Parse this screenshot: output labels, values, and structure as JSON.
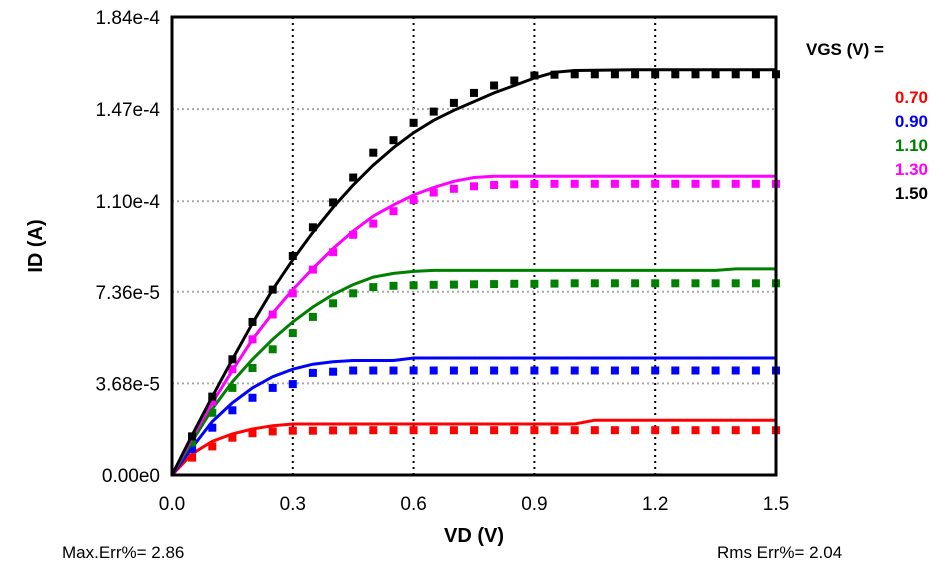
{
  "chart_data": {
    "type": "line",
    "xlabel": "VD (V)",
    "ylabel": "ID (A)",
    "xlim": [
      0,
      1.5
    ],
    "ylim": [
      0,
      0.000184
    ],
    "x_ticks": [
      "0.0",
      "0.3",
      "0.6",
      "0.9",
      "1.2",
      "1.5"
    ],
    "y_ticks": [
      "0.00e0",
      "3.68e-5",
      "7.36e-5",
      "1.10e-4",
      "1.47e-4",
      "1.84e-4"
    ],
    "legend_title": "VGS (V) =",
    "legend_position": "right",
    "vertical_grid": "dotted black",
    "horizontal_grid": "dotted gray",
    "series": [
      {
        "name": "0.70",
        "color": "#ff0000",
        "model": {
          "x": [
            0,
            0.05,
            0.1,
            0.15,
            0.2,
            0.25,
            0.3,
            0.35,
            0.45,
            0.6,
            1.0,
            1.05,
            1.5
          ],
          "y": [
            0,
            8.5e-06,
            1.35e-05,
            1.65e-05,
            1.85e-05,
            1.98e-05,
            2.05e-05,
            2.05e-05,
            2.05e-05,
            2.05e-05,
            2.05e-05,
            2.2e-05,
            2.2e-05
          ]
        },
        "measured": {
          "x": [
            0.05,
            0.1,
            0.15,
            0.2,
            0.25,
            0.3,
            0.35,
            0.4,
            0.45,
            0.5,
            0.55,
            0.6,
            0.65,
            0.7,
            0.75,
            0.8,
            0.85,
            0.9,
            0.95,
            1.0,
            1.05,
            1.1,
            1.15,
            1.2,
            1.25,
            1.3,
            1.35,
            1.4,
            1.45,
            1.5
          ],
          "y": [
            7e-06,
            1.15e-05,
            1.5e-05,
            1.68e-05,
            1.75e-05,
            1.78e-05,
            1.78e-05,
            1.79e-05,
            1.79e-05,
            1.8e-05,
            1.8e-05,
            1.8e-05,
            1.8e-05,
            1.8e-05,
            1.8e-05,
            1.8e-05,
            1.8e-05,
            1.8e-05,
            1.8e-05,
            1.8e-05,
            1.8e-05,
            1.8e-05,
            1.8e-05,
            1.8e-05,
            1.8e-05,
            1.8e-05,
            1.8e-05,
            1.8e-05,
            1.8e-05,
            1.8e-05
          ]
        }
      },
      {
        "name": "0.90",
        "color": "#0000ff",
        "model": {
          "x": [
            0,
            0.05,
            0.1,
            0.15,
            0.2,
            0.25,
            0.3,
            0.35,
            0.4,
            0.45,
            0.55,
            0.6,
            0.7,
            1.5
          ],
          "y": [
            0,
            1.1e-05,
            2.15e-05,
            2.9e-05,
            3.5e-05,
            3.95e-05,
            4.25e-05,
            4.45e-05,
            4.55e-05,
            4.6e-05,
            4.6e-05,
            4.7e-05,
            4.7e-05,
            4.7e-05
          ]
        },
        "measured": {
          "x": [
            0.05,
            0.1,
            0.15,
            0.2,
            0.25,
            0.3,
            0.35,
            0.4,
            0.45,
            0.5,
            0.55,
            0.6,
            0.65,
            0.7,
            0.75,
            0.8,
            0.85,
            0.9,
            0.95,
            1.0,
            1.05,
            1.1,
            1.15,
            1.2,
            1.25,
            1.3,
            1.35,
            1.4,
            1.45,
            1.5
          ],
          "y": [
            1.05e-05,
            1.9e-05,
            2.6e-05,
            3.1e-05,
            3.5e-05,
            3.65e-05,
            4.1e-05,
            4.15e-05,
            4.2e-05,
            4.2e-05,
            4.2e-05,
            4.2e-05,
            4.2e-05,
            4.2e-05,
            4.2e-05,
            4.2e-05,
            4.2e-05,
            4.2e-05,
            4.2e-05,
            4.2e-05,
            4.2e-05,
            4.2e-05,
            4.2e-05,
            4.2e-05,
            4.2e-05,
            4.2e-05,
            4.2e-05,
            4.2e-05,
            4.2e-05,
            4.2e-05
          ]
        }
      },
      {
        "name": "1.10",
        "color": "#008000",
        "model": {
          "x": [
            0,
            0.05,
            0.1,
            0.15,
            0.2,
            0.25,
            0.3,
            0.35,
            0.4,
            0.45,
            0.5,
            0.55,
            0.6,
            0.65,
            0.7,
            1.35,
            1.4,
            1.5
          ],
          "y": [
            0,
            1.35e-05,
            2.65e-05,
            3.75e-05,
            4.65e-05,
            5.45e-05,
            6.15e-05,
            6.75e-05,
            7.25e-05,
            7.65e-05,
            7.95e-05,
            8.1e-05,
            8.18e-05,
            8.22e-05,
            8.22e-05,
            8.22e-05,
            8.28e-05,
            8.28e-05
          ]
        },
        "measured": {
          "x": [
            0.05,
            0.1,
            0.15,
            0.2,
            0.25,
            0.3,
            0.35,
            0.4,
            0.45,
            0.5,
            0.55,
            0.6,
            0.65,
            0.7,
            0.75,
            0.8,
            0.85,
            0.9,
            0.95,
            1.0,
            1.05,
            1.1,
            1.15,
            1.2,
            1.25,
            1.3,
            1.35,
            1.4,
            1.45,
            1.5
          ],
          "y": [
            1.3e-05,
            2.5e-05,
            3.5e-05,
            4.3e-05,
            5.05e-05,
            5.7e-05,
            6.35e-05,
            6.9e-05,
            7.3e-05,
            7.55e-05,
            7.6e-05,
            7.62e-05,
            7.64e-05,
            7.65e-05,
            7.66e-05,
            7.67e-05,
            7.68e-05,
            7.68e-05,
            7.69e-05,
            7.7e-05,
            7.7e-05,
            7.7e-05,
            7.7e-05,
            7.7e-05,
            7.7e-05,
            7.7e-05,
            7.7e-05,
            7.7e-05,
            7.7e-05,
            7.7e-05
          ]
        }
      },
      {
        "name": "1.30",
        "color": "#ff00ff",
        "model": {
          "x": [
            0,
            0.05,
            0.1,
            0.15,
            0.2,
            0.25,
            0.3,
            0.35,
            0.4,
            0.45,
            0.5,
            0.55,
            0.6,
            0.65,
            0.7,
            0.75,
            0.8,
            1.5
          ],
          "y": [
            0,
            1.5e-05,
            2.9e-05,
            4.2e-05,
            5.45e-05,
            6.5e-05,
            7.45e-05,
            8.3e-05,
            9.1e-05,
            9.8e-05,
            0.000104,
            0.0001085,
            0.0001125,
            0.0001155,
            0.000118,
            0.0001195,
            0.00012,
            0.00012
          ]
        },
        "measured": {
          "x": [
            0.05,
            0.1,
            0.15,
            0.2,
            0.25,
            0.3,
            0.35,
            0.4,
            0.45,
            0.5,
            0.55,
            0.6,
            0.65,
            0.7,
            0.75,
            0.8,
            0.85,
            0.9,
            0.95,
            1.0,
            1.05,
            1.1,
            1.15,
            1.2,
            1.25,
            1.3,
            1.35,
            1.4,
            1.45,
            1.5
          ],
          "y": [
            1.55e-05,
            2.95e-05,
            4.25e-05,
            5.45e-05,
            6.45e-05,
            7.3e-05,
            8.25e-05,
            8.95e-05,
            9.65e-05,
            0.000101,
            0.000106,
            0.0001105,
            0.0001135,
            0.000115,
            0.000116,
            0.0001165,
            0.0001168,
            0.0001169,
            0.000117,
            0.000117,
            0.000117,
            0.000117,
            0.000117,
            0.000117,
            0.000117,
            0.000117,
            0.000117,
            0.000117,
            0.000117,
            0.000117
          ]
        }
      },
      {
        "name": "1.50",
        "color": "#000000",
        "model": {
          "x": [
            0,
            0.05,
            0.1,
            0.15,
            0.2,
            0.25,
            0.3,
            0.35,
            0.4,
            0.45,
            0.5,
            0.55,
            0.6,
            0.65,
            0.7,
            0.75,
            0.8,
            0.85,
            0.9,
            0.95,
            1.0,
            1.15,
            1.5
          ],
          "y": [
            0,
            1.6e-05,
            3.15e-05,
            4.65e-05,
            6.1e-05,
            7.45e-05,
            8.65e-05,
            9.75e-05,
            0.0001075,
            0.0001165,
            0.0001245,
            0.0001315,
            0.0001375,
            0.0001425,
            0.0001465,
            0.00015,
            0.0001535,
            0.0001565,
            0.0001595,
            0.0001618,
            0.0001625,
            0.0001628,
            0.0001628
          ]
        },
        "measured": {
          "x": [
            0.05,
            0.1,
            0.15,
            0.2,
            0.25,
            0.3,
            0.35,
            0.4,
            0.45,
            0.5,
            0.55,
            0.6,
            0.65,
            0.7,
            0.75,
            0.8,
            0.85,
            0.9,
            0.95,
            1.0,
            1.05,
            1.1,
            1.15,
            1.2,
            1.25,
            1.3,
            1.35,
            1.4,
            1.45,
            1.5
          ],
          "y": [
            1.55e-05,
            3.15e-05,
            4.65e-05,
            6.15e-05,
            7.45e-05,
            8.8e-05,
            9.95e-05,
            0.0001095,
            0.0001195,
            0.0001295,
            0.0001345,
            0.0001415,
            0.000146,
            0.0001495,
            0.0001535,
            0.0001565,
            0.0001585,
            0.0001605,
            0.0001608,
            0.000161,
            0.000161,
            0.000161,
            0.000161,
            0.000161,
            0.000161,
            0.000161,
            0.000161,
            0.000161,
            0.000161,
            0.000161
          ]
        }
      }
    ]
  },
  "footer": {
    "max_err": "Max.Err%=  2.86",
    "rms_err": "Rms Err%=   2.04"
  }
}
